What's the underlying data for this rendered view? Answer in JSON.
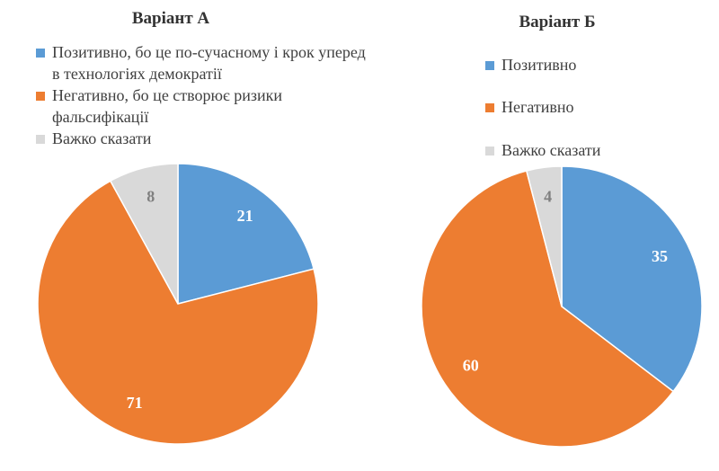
{
  "chart_data": [
    {
      "type": "pie",
      "title": "Варіант А",
      "categories": [
        "Позитивно, бо це по-сучасному і крок уперед в технологіях демократії",
        "Негативно, бо це створює ризики фальсифікації",
        "Важко сказати"
      ],
      "values": [
        21,
        71,
        8
      ],
      "colors": [
        "#5b9bd5",
        "#ed7d31",
        "#d9d9d9"
      ]
    },
    {
      "type": "pie",
      "title": "Варіант Б",
      "categories": [
        "Позитивно",
        "Негативно",
        "Важко сказати"
      ],
      "values": [
        35,
        60,
        4
      ],
      "colors": [
        "#5b9bd5",
        "#ed7d31",
        "#d9d9d9"
      ]
    }
  ]
}
